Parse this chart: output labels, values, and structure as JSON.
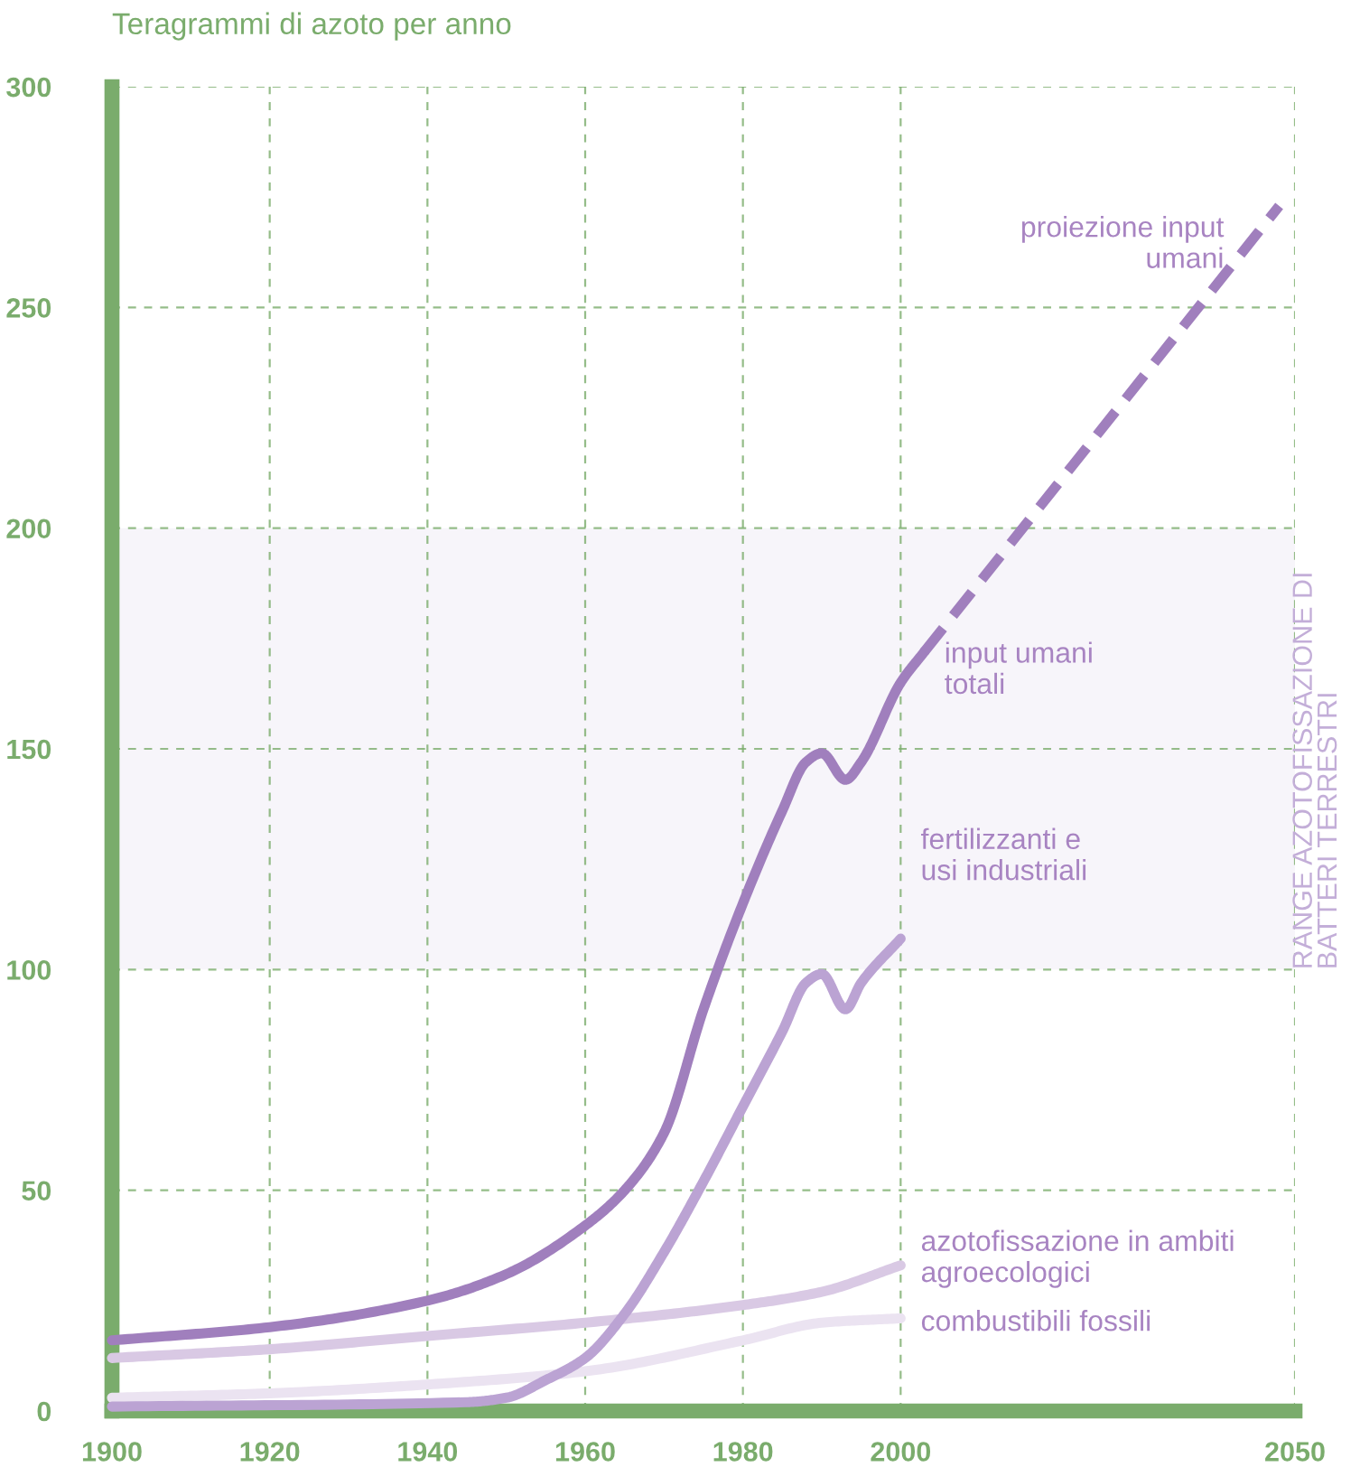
{
  "chart_data": {
    "type": "line",
    "ylabel": "Teragrammi di azoto per anno",
    "xlim": [
      1900,
      2050
    ],
    "ylim": [
      0,
      300
    ],
    "xticks": [
      1900,
      1920,
      1940,
      1960,
      1980,
      2000,
      2050
    ],
    "yticks": [
      0,
      50,
      100,
      150,
      200,
      250,
      300
    ],
    "grid": true,
    "bands": [
      {
        "axis": "y",
        "from": 100,
        "to": 200,
        "label": "RANGE AZOTOFISSAZIONE DI BATTERI TERRESTRI",
        "color": "#f7f5fa"
      }
    ],
    "series": [
      {
        "name": "input umani totali",
        "color": "#a07fbd",
        "line_style": "solid",
        "x": [
          1900,
          1920,
          1940,
          1950,
          1960,
          1965,
          1970,
          1975,
          1980,
          1985,
          1988,
          1990,
          1993,
          1995,
          2000,
          2003
        ],
        "values": [
          16,
          19,
          25,
          31,
          42,
          50,
          63,
          91,
          115,
          136,
          147,
          149,
          143,
          147,
          165,
          172
        ]
      },
      {
        "name": "proiezione input umani",
        "color": "#a07fbd",
        "line_style": "dashed",
        "x": [
          2003,
          2048
        ],
        "values": [
          172,
          273
        ]
      },
      {
        "name": "fertilizzanti e usi industriali",
        "color": "#bba3d3",
        "line_style": "solid",
        "x": [
          1900,
          1945,
          1950,
          1955,
          1960,
          1965,
          1970,
          1975,
          1980,
          1985,
          1988,
          1990,
          1993,
          1995,
          2000
        ],
        "values": [
          1,
          2,
          3,
          7,
          12,
          22,
          36,
          52,
          69,
          86,
          97,
          99,
          91,
          97,
          107
        ]
      },
      {
        "name": "azotofissazione in ambiti agroecologici",
        "color": "#d9c9e4",
        "line_style": "solid",
        "x": [
          1900,
          1920,
          1940,
          1960,
          1980,
          1990,
          2000
        ],
        "values": [
          12,
          14,
          17,
          20,
          24,
          27,
          33
        ]
      },
      {
        "name": "combustibili fossili",
        "color": "#ebe3f1",
        "line_style": "solid",
        "x": [
          1900,
          1920,
          1940,
          1960,
          1980,
          1990,
          2000
        ],
        "values": [
          3,
          4,
          6,
          9,
          16,
          20,
          21
        ]
      }
    ]
  }
}
